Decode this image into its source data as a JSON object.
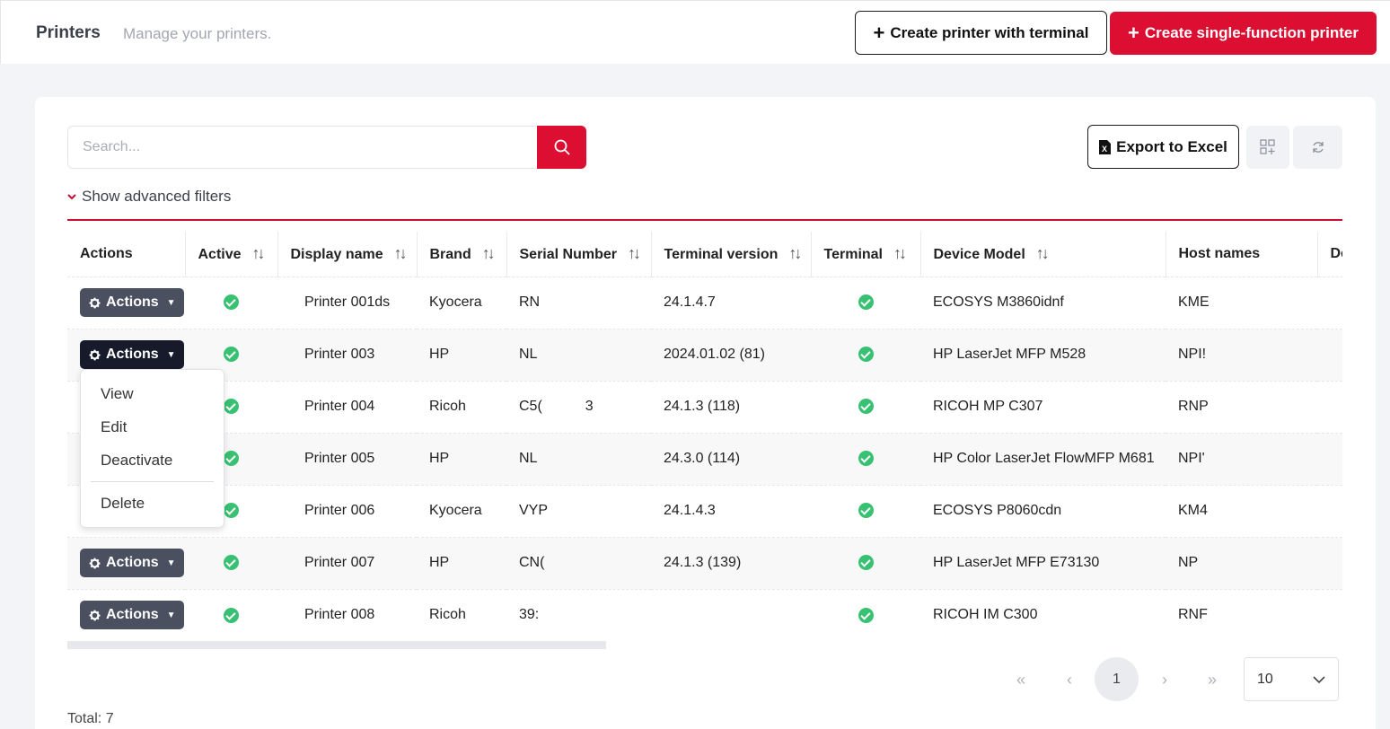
{
  "header": {
    "title": "Printers",
    "subtitle": "Manage your printers.",
    "create_terminal_label": "Create printer with terminal",
    "create_single_label": "Create single-function printer"
  },
  "toolbar": {
    "search_placeholder": "Search...",
    "export_label": "Export to Excel",
    "advanced_filters_label": "Show advanced filters"
  },
  "table": {
    "columns": [
      "Actions",
      "Active",
      "Display name",
      "Brand",
      "Serial Number",
      "Terminal version",
      "Terminal",
      "Device Model",
      "Host names",
      "De"
    ],
    "action_label": "Actions",
    "rows": [
      {
        "name": "Printer 001ds",
        "brand": "Kyocera",
        "serial": "RN",
        "version": "24.1.4.7",
        "model": "ECOSYS M3860idnf",
        "host": "KME"
      },
      {
        "name": "Printer 003",
        "brand": "HP",
        "serial": "NL",
        "version": "2024.01.02 (81)",
        "model": "HP LaserJet MFP M528",
        "host": "NPI!"
      },
      {
        "name": "Printer 004",
        "brand": "Ricoh",
        "serial": "C5(",
        "serial_tail": "3",
        "version": "24.1.3 (118)",
        "model": "RICOH MP C307",
        "host": "RNP"
      },
      {
        "name": "Printer 005",
        "brand": "HP",
        "serial": "NL",
        "version": "24.3.0 (114)",
        "model": "HP Color LaserJet FlowMFP M681",
        "host": "NPI'"
      },
      {
        "name": "Printer 006",
        "brand": "Kyocera",
        "serial": "VYP",
        "version": "24.1.4.3",
        "model": "ECOSYS P8060cdn",
        "host": "KM4"
      },
      {
        "name": "Printer 007",
        "brand": "HP",
        "serial": "CN(",
        "version": "24.1.3 (139)",
        "model": "HP LaserJet MFP E73130",
        "host": "NP"
      },
      {
        "name": "Printer 008",
        "brand": "Ricoh",
        "serial": "39:",
        "version": "",
        "model": "RICOH IM C300",
        "host": "RNF"
      }
    ]
  },
  "dropdown": {
    "view": "View",
    "edit": "Edit",
    "deactivate": "Deactivate",
    "delete": "Delete"
  },
  "pagination": {
    "current_page": "1",
    "per_page": "10",
    "first": "«",
    "prev": "‹",
    "next": "›",
    "last": "»"
  },
  "footer": {
    "total": "Total: 7"
  },
  "colors": {
    "accent": "#dc0f32",
    "active": "#38c172",
    "action_button": "#4a5060"
  }
}
